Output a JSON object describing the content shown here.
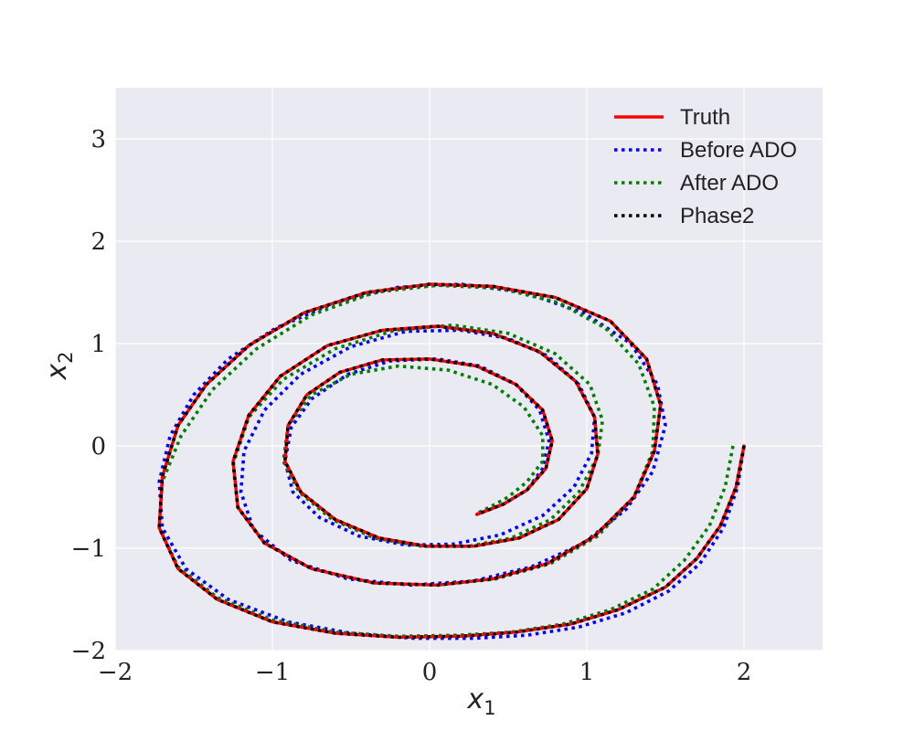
{
  "chart_data": {
    "type": "line",
    "title": "",
    "xlabel": {
      "base": "x",
      "sub": "1"
    },
    "ylabel": {
      "base": "x",
      "sub": "2"
    },
    "xlim": [
      -2,
      2.5
    ],
    "ylim": [
      -2,
      3.5
    ],
    "xticks": [
      -2,
      -1,
      0,
      1,
      2
    ],
    "yticks": [
      -2,
      -1,
      0,
      1,
      2,
      3
    ],
    "xtick_labels": [
      "−2",
      "−1",
      "0",
      "1",
      "2"
    ],
    "ytick_labels": [
      "−2",
      "−1",
      "0",
      "1",
      "2",
      "3"
    ],
    "grid": true,
    "background": "#eaeaf2",
    "legend_position": "top-right",
    "series": [
      {
        "name": "Truth",
        "color": "#ff0000",
        "style": "solid",
        "x": [
          2.0,
          1.95,
          1.85,
          1.7,
          1.5,
          1.2,
          0.9,
          0.55,
          0.2,
          -0.2,
          -0.6,
          -1.0,
          -1.35,
          -1.6,
          -1.72,
          -1.7,
          -1.6,
          -1.42,
          -1.15,
          -0.8,
          -0.4,
          0.0,
          0.4,
          0.8,
          1.15,
          1.38,
          1.47,
          1.43,
          1.3,
          1.05,
          0.75,
          0.4,
          0.05,
          -0.35,
          -0.75,
          -1.05,
          -1.22,
          -1.25,
          -1.15,
          -0.95,
          -0.65,
          -0.3,
          0.05,
          0.4,
          0.7,
          0.93,
          1.05,
          1.07,
          1.0,
          0.82,
          0.57,
          0.28,
          -0.02,
          -0.32,
          -0.6,
          -0.82,
          -0.92,
          -0.9,
          -0.78,
          -0.57,
          -0.3,
          0.0,
          0.3,
          0.55,
          0.72,
          0.78,
          0.74,
          0.62,
          0.47,
          0.3
        ],
        "y": [
          0.0,
          -0.4,
          -0.78,
          -1.1,
          -1.38,
          -1.6,
          -1.74,
          -1.82,
          -1.86,
          -1.87,
          -1.83,
          -1.72,
          -1.5,
          -1.2,
          -0.8,
          -0.3,
          0.2,
          0.6,
          0.98,
          1.3,
          1.5,
          1.58,
          1.56,
          1.45,
          1.22,
          0.85,
          0.4,
          -0.05,
          -0.5,
          -0.88,
          -1.15,
          -1.3,
          -1.36,
          -1.34,
          -1.2,
          -0.95,
          -0.6,
          -0.15,
          0.3,
          0.68,
          0.98,
          1.13,
          1.17,
          1.1,
          0.92,
          0.63,
          0.28,
          -0.08,
          -0.42,
          -0.72,
          -0.9,
          -0.98,
          -0.98,
          -0.9,
          -0.72,
          -0.45,
          -0.15,
          0.2,
          0.5,
          0.72,
          0.84,
          0.85,
          0.78,
          0.6,
          0.35,
          0.05,
          -0.22,
          -0.43,
          -0.57,
          -0.67
        ]
      },
      {
        "name": "Before ADO",
        "color": "#0000ff",
        "style": "dotted",
        "x": [
          2.0,
          1.96,
          1.87,
          1.72,
          1.52,
          1.25,
          0.95,
          0.62,
          0.28,
          -0.1,
          -0.5,
          -0.9,
          -1.28,
          -1.55,
          -1.7,
          -1.72,
          -1.65,
          -1.5,
          -1.28,
          -0.98,
          -0.6,
          -0.2,
          0.2,
          0.6,
          0.98,
          1.28,
          1.45,
          1.5,
          1.42,
          1.25,
          0.98,
          0.65,
          0.28,
          -0.12,
          -0.52,
          -0.88,
          -1.12,
          -1.2,
          -1.18,
          -1.05,
          -0.82,
          -0.5,
          -0.15,
          0.2,
          0.5,
          0.75,
          0.95,
          1.05,
          1.03,
          0.92,
          0.72,
          0.45,
          0.15,
          -0.15,
          -0.45,
          -0.7,
          -0.87,
          -0.92,
          -0.88,
          -0.75,
          -0.52,
          -0.25,
          0.05,
          0.32,
          0.55,
          0.7,
          0.76,
          0.72,
          0.62,
          0.47,
          0.3
        ],
        "y": [
          0.0,
          -0.4,
          -0.8,
          -1.15,
          -1.42,
          -1.63,
          -1.77,
          -1.85,
          -1.88,
          -1.88,
          -1.83,
          -1.72,
          -1.5,
          -1.2,
          -0.8,
          -0.35,
          0.1,
          0.5,
          0.85,
          1.15,
          1.4,
          1.55,
          1.58,
          1.5,
          1.3,
          1.0,
          0.6,
          0.2,
          -0.25,
          -0.62,
          -0.95,
          -1.18,
          -1.32,
          -1.36,
          -1.3,
          -1.12,
          -0.82,
          -0.45,
          -0.05,
          0.35,
          0.7,
          0.97,
          1.12,
          1.13,
          1.05,
          0.88,
          0.6,
          0.28,
          -0.07,
          -0.4,
          -0.68,
          -0.87,
          -0.96,
          -0.97,
          -0.88,
          -0.7,
          -0.45,
          -0.15,
          0.18,
          0.46,
          0.7,
          0.83,
          0.85,
          0.78,
          0.6,
          0.35,
          0.05,
          -0.22,
          -0.43,
          -0.57,
          -0.67
        ]
      },
      {
        "name": "After ADO",
        "color": "#008000",
        "style": "dotted",
        "x": [
          1.93,
          1.88,
          1.78,
          1.62,
          1.42,
          1.15,
          0.85,
          0.52,
          0.18,
          -0.2,
          -0.6,
          -1.0,
          -1.35,
          -1.6,
          -1.72,
          -1.7,
          -1.58,
          -1.38,
          -1.1,
          -0.75,
          -0.35,
          0.05,
          0.45,
          0.82,
          1.12,
          1.33,
          1.43,
          1.42,
          1.3,
          1.07,
          0.77,
          0.42,
          0.05,
          -0.35,
          -0.75,
          -1.05,
          -1.22,
          -1.25,
          -1.15,
          -0.93,
          -0.6,
          -0.22,
          0.15,
          0.5,
          0.8,
          1.02,
          1.1,
          1.07,
          0.95,
          0.77,
          0.52,
          0.25,
          -0.05,
          -0.35,
          -0.62,
          -0.83,
          -0.93,
          -0.9,
          -0.75,
          -0.5,
          -0.2,
          0.12,
          0.4,
          0.6,
          0.72,
          0.72,
          0.62,
          0.5,
          0.38,
          0.3
        ],
        "y": [
          0.0,
          -0.4,
          -0.78,
          -1.12,
          -1.4,
          -1.6,
          -1.74,
          -1.82,
          -1.85,
          -1.86,
          -1.82,
          -1.7,
          -1.48,
          -1.18,
          -0.8,
          -0.35,
          0.1,
          0.55,
          0.95,
          1.28,
          1.5,
          1.57,
          1.54,
          1.4,
          1.15,
          0.8,
          0.38,
          -0.05,
          -0.5,
          -0.88,
          -1.15,
          -1.3,
          -1.36,
          -1.34,
          -1.2,
          -0.95,
          -0.6,
          -0.18,
          0.28,
          0.65,
          0.95,
          1.13,
          1.18,
          1.1,
          0.9,
          0.6,
          0.25,
          -0.1,
          -0.45,
          -0.72,
          -0.9,
          -0.98,
          -0.98,
          -0.9,
          -0.72,
          -0.45,
          -0.15,
          0.2,
          0.5,
          0.7,
          0.78,
          0.74,
          0.6,
          0.38,
          0.1,
          -0.15,
          -0.35,
          -0.5,
          -0.6,
          -0.66
        ]
      },
      {
        "name": "Phase2",
        "color": "#000000",
        "style": "dotted",
        "x": [
          2.0,
          1.95,
          1.85,
          1.7,
          1.5,
          1.2,
          0.9,
          0.55,
          0.2,
          -0.2,
          -0.6,
          -1.0,
          -1.35,
          -1.6,
          -1.72,
          -1.7,
          -1.6,
          -1.42,
          -1.15,
          -0.8,
          -0.4,
          0.0,
          0.4,
          0.8,
          1.15,
          1.38,
          1.47,
          1.43,
          1.3,
          1.05,
          0.75,
          0.4,
          0.05,
          -0.35,
          -0.75,
          -1.05,
          -1.22,
          -1.25,
          -1.15,
          -0.95,
          -0.65,
          -0.3,
          0.05,
          0.4,
          0.7,
          0.93,
          1.05,
          1.07,
          1.0,
          0.82,
          0.57,
          0.28,
          -0.02,
          -0.32,
          -0.6,
          -0.82,
          -0.92,
          -0.9,
          -0.78,
          -0.57,
          -0.3,
          0.0,
          0.3,
          0.55,
          0.72,
          0.78,
          0.74,
          0.62,
          0.47,
          0.3
        ],
        "y": [
          0.0,
          -0.4,
          -0.78,
          -1.1,
          -1.38,
          -1.6,
          -1.74,
          -1.82,
          -1.86,
          -1.87,
          -1.83,
          -1.72,
          -1.5,
          -1.2,
          -0.8,
          -0.3,
          0.2,
          0.6,
          0.98,
          1.3,
          1.5,
          1.58,
          1.56,
          1.45,
          1.22,
          0.85,
          0.4,
          -0.05,
          -0.5,
          -0.88,
          -1.15,
          -1.3,
          -1.36,
          -1.34,
          -1.2,
          -0.95,
          -0.6,
          -0.15,
          0.3,
          0.68,
          0.98,
          1.13,
          1.17,
          1.1,
          0.92,
          0.63,
          0.28,
          -0.08,
          -0.42,
          -0.72,
          -0.9,
          -0.98,
          -0.98,
          -0.9,
          -0.72,
          -0.45,
          -0.15,
          0.2,
          0.5,
          0.72,
          0.84,
          0.85,
          0.78,
          0.6,
          0.35,
          0.05,
          -0.22,
          -0.43,
          -0.57,
          -0.67
        ]
      }
    ]
  }
}
